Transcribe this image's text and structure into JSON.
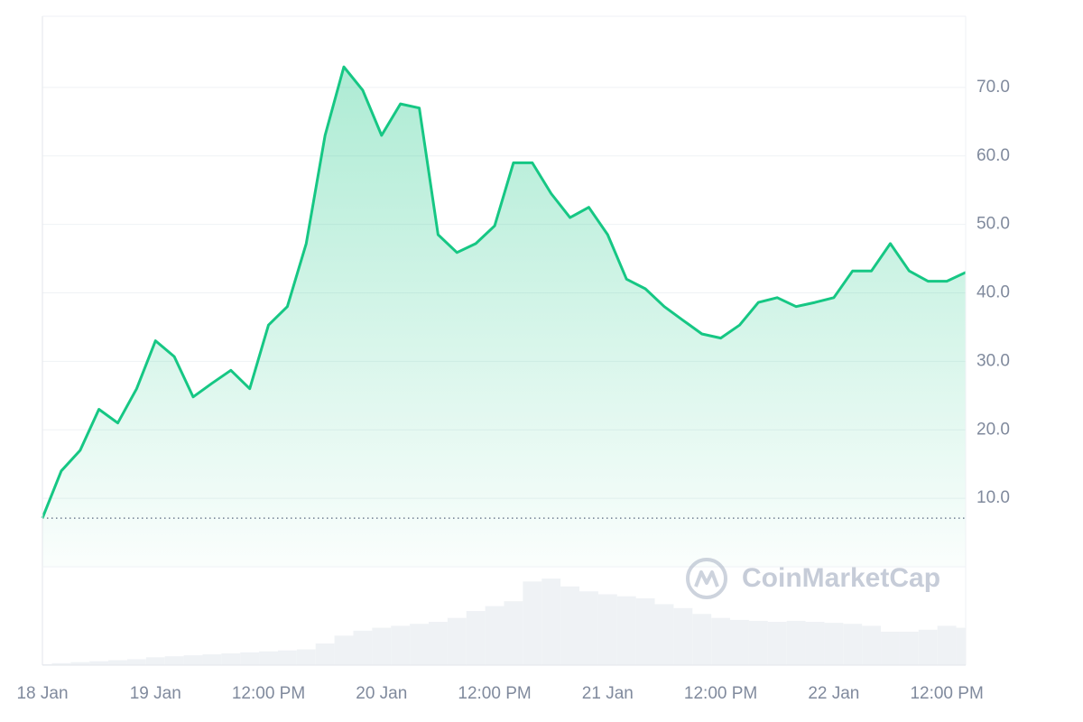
{
  "chart_data": {
    "type": "line",
    "watermark": "CoinMarketCap",
    "x": [
      "18 Jan 12:00 PM",
      "18 Jan 2:00 PM",
      "18 Jan 4:00 PM",
      "18 Jan 6:00 PM",
      "18 Jan 8:00 PM",
      "18 Jan 10:00 PM",
      "19 Jan 12:00 AM",
      "19 Jan 2:00 AM",
      "19 Jan 4:00 AM",
      "19 Jan 6:00 AM",
      "19 Jan 8:00 AM",
      "19 Jan 10:00 AM",
      "19 Jan 12:00 PM",
      "19 Jan 2:00 PM",
      "19 Jan 4:00 PM",
      "19 Jan 6:00 PM",
      "19 Jan 8:00 PM",
      "19 Jan 10:00 PM",
      "20 Jan 12:00 AM",
      "20 Jan 2:00 AM",
      "20 Jan 4:00 AM",
      "20 Jan 6:00 AM",
      "20 Jan 8:00 AM",
      "20 Jan 10:00 AM",
      "20 Jan 12:00 PM",
      "20 Jan 2:00 PM",
      "20 Jan 4:00 PM",
      "20 Jan 6:00 PM",
      "20 Jan 8:00 PM",
      "20 Jan 10:00 PM",
      "21 Jan 12:00 AM",
      "21 Jan 2:00 AM",
      "21 Jan 4:00 AM",
      "21 Jan 6:00 AM",
      "21 Jan 8:00 AM",
      "21 Jan 10:00 AM",
      "21 Jan 12:00 PM",
      "21 Jan 2:00 PM",
      "21 Jan 4:00 PM",
      "21 Jan 6:00 PM",
      "21 Jan 8:00 PM",
      "21 Jan 10:00 PM",
      "22 Jan 12:00 AM",
      "22 Jan 2:00 AM",
      "22 Jan 4:00 AM",
      "22 Jan 6:00 AM",
      "22 Jan 8:00 AM",
      "22 Jan 10:00 AM",
      "22 Jan 12:00 PM",
      "22 Jan 2:00 PM"
    ],
    "series": [
      {
        "color": "#16c784",
        "values": [
          7.1,
          14,
          17,
          23,
          21,
          26,
          33,
          30.7,
          24.8,
          26.8,
          28.7,
          26,
          35.3,
          38,
          47.2,
          63,
          73,
          69.6,
          63,
          67.6,
          67,
          48.5,
          45.9,
          47.2,
          49.8,
          59,
          59,
          54.5,
          51,
          52.5,
          48.5,
          42,
          40.6,
          38,
          36,
          34,
          33.4,
          35.3,
          38.6,
          39.3,
          38,
          38.6,
          39.3,
          43.2,
          43.2,
          47.2,
          43.2,
          41.7,
          41.7,
          43
        ]
      },
      {
        "color": "#eff2f5",
        "axis": "volume",
        "values": [
          1,
          2,
          3,
          4,
          5,
          6,
          8,
          9,
          10,
          11,
          12,
          13,
          14,
          15,
          16,
          22,
          30,
          35,
          38,
          40,
          42,
          44,
          48,
          55,
          60,
          65,
          85,
          88,
          80,
          75,
          72,
          70,
          68,
          62,
          58,
          52,
          48,
          46,
          45,
          44,
          45,
          44,
          43,
          42,
          40,
          34,
          34,
          36,
          40,
          38
        ]
      }
    ],
    "xlim": [
      "18 Jan 12:00 PM",
      "22 Jan 2:00 PM"
    ],
    "xticks": [
      {
        "value": "18 Jan 12:00 PM",
        "label": "18 Jan"
      },
      {
        "value": "19 Jan 12:00 AM",
        "label": "19 Jan"
      },
      {
        "value": "19 Jan 12:00 PM",
        "label": "12:00 PM"
      },
      {
        "value": "20 Jan 12:00 AM",
        "label": "20 Jan"
      },
      {
        "value": "20 Jan 12:00 PM",
        "label": "12:00 PM"
      },
      {
        "value": "21 Jan 12:00 AM",
        "label": "21 Jan"
      },
      {
        "value": "21 Jan 12:00 PM",
        "label": "12:00 PM"
      },
      {
        "value": "22 Jan 12:00 AM",
        "label": "22 Jan"
      },
      {
        "value": "22 Jan 12:00 PM",
        "label": "12:00 PM"
      }
    ],
    "ylim": [
      0,
      80.4
    ],
    "yticks": [
      {
        "value": 10,
        "label": "10.0"
      },
      {
        "value": 20,
        "label": "20.0"
      },
      {
        "value": 30,
        "label": "30.0"
      },
      {
        "value": 40,
        "label": "40.0"
      },
      {
        "value": 50,
        "label": "50.0"
      },
      {
        "value": 60,
        "label": "60.0"
      },
      {
        "value": 70,
        "label": "70.0"
      }
    ],
    "volume_ylim": [
      0,
      100
    ],
    "grid": true
  }
}
